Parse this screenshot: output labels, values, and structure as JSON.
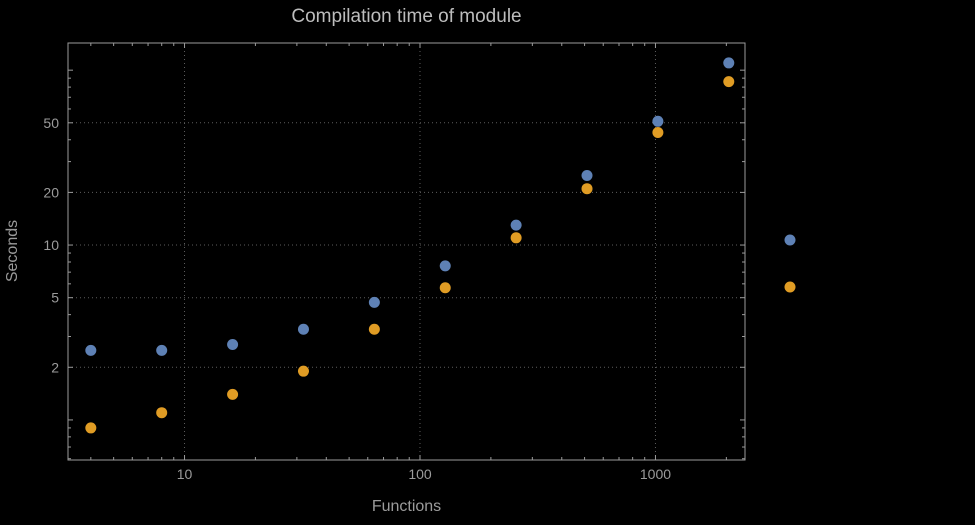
{
  "chart_data": {
    "type": "scatter",
    "title": "Compilation time of module",
    "xlabel": "Functions",
    "ylabel": "Seconds",
    "x_scale": "log",
    "y_scale": "log",
    "xlim": [
      3.2,
      2400
    ],
    "ylim": [
      0.59,
      143
    ],
    "x_ticks": [
      10,
      100,
      1000
    ],
    "y_ticks": [
      2,
      5,
      10,
      20,
      50
    ],
    "grid": "dotted major gridlines, framed plot, black background",
    "x": [
      4,
      8,
      16,
      32,
      64,
      128,
      256,
      512,
      1024,
      2048
    ],
    "series": [
      {
        "name": "blue",
        "color": "#5E81B5",
        "values": [
          2.5,
          2.5,
          2.7,
          3.3,
          4.7,
          7.6,
          13,
          25,
          51,
          110
        ]
      },
      {
        "name": "orange",
        "color": "#E09C24",
        "values": [
          0.9,
          1.1,
          1.4,
          1.9,
          3.3,
          5.7,
          11,
          21,
          44,
          86
        ]
      }
    ],
    "legend": {
      "position": "right-outside",
      "items": [
        {
          "name": "blue",
          "color": "#5E81B5",
          "label": ""
        },
        {
          "name": "orange",
          "color": "#E09C24",
          "label": ""
        }
      ]
    }
  }
}
